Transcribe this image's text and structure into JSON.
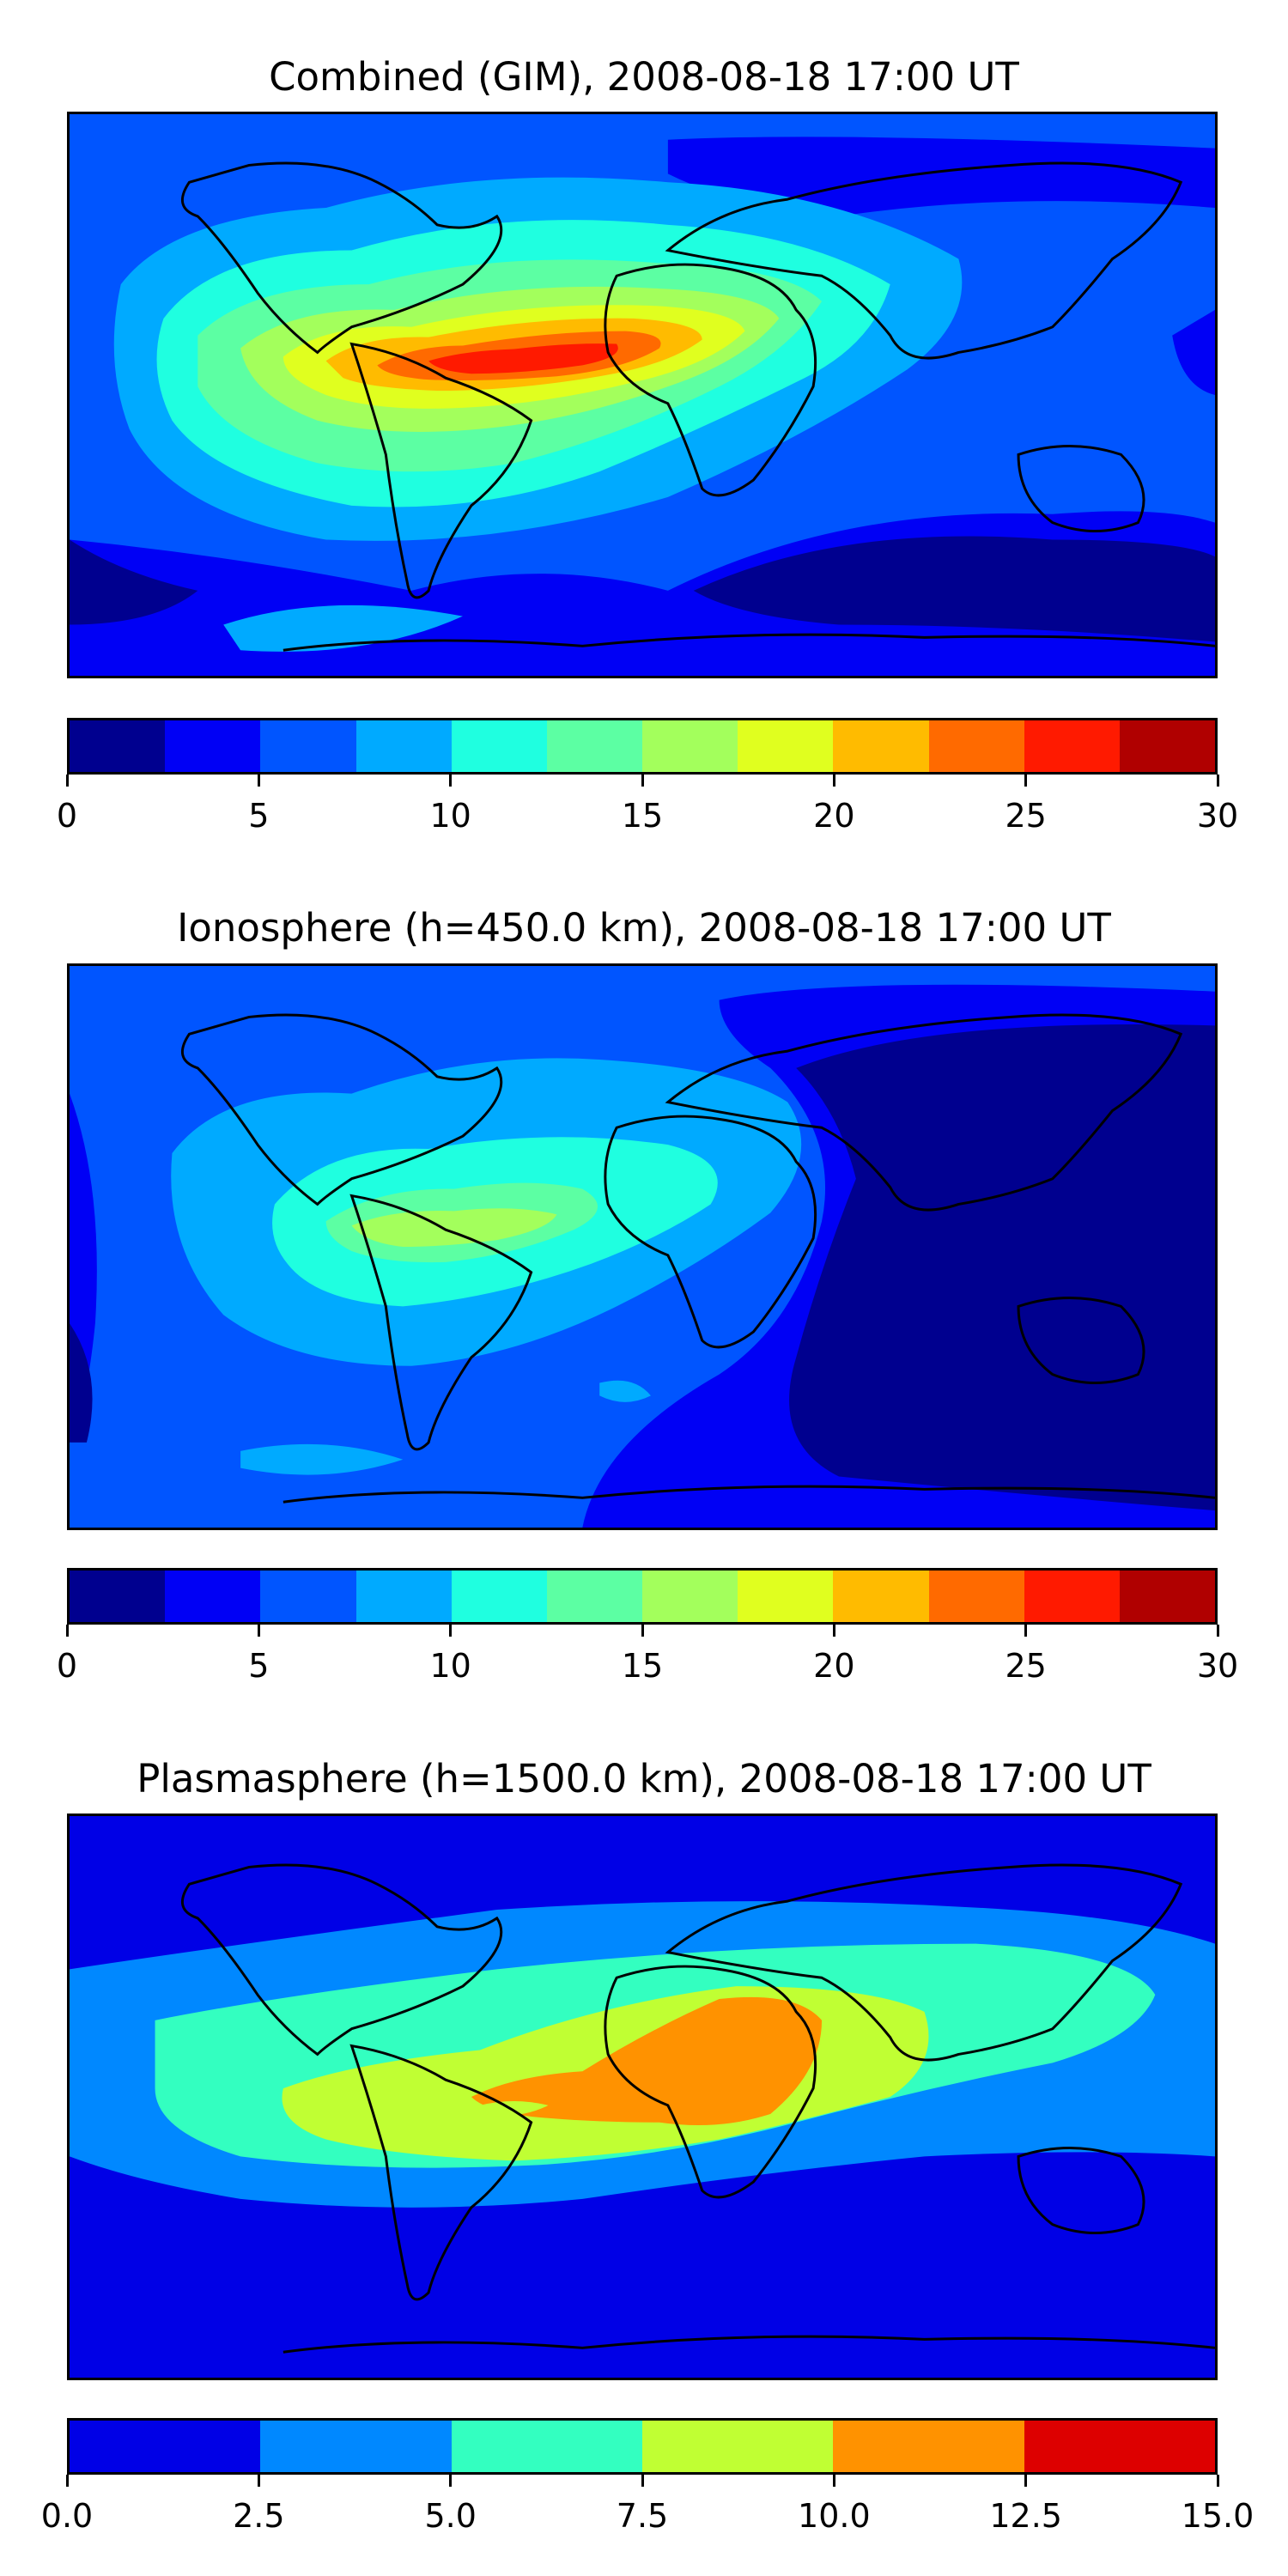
{
  "panels": [
    {
      "title": "Combined (GIM), 2008-08-18 17:00 UT",
      "colorbar": {
        "colors": [
          "#00008f",
          "#0000f5",
          "#0055ff",
          "#00aaff",
          "#1fffe0",
          "#5cffa3",
          "#a3ff5c",
          "#e0ff1f",
          "#ffbb00",
          "#ff6a00",
          "#ff1a00",
          "#b00000"
        ],
        "ticks": [
          "0",
          "5",
          "10",
          "15",
          "20",
          "25",
          "30"
        ],
        "range": [
          0,
          30
        ]
      }
    },
    {
      "title": "Ionosphere  (h=450.0 km), 2008-08-18 17:00 UT",
      "colorbar": {
        "colors": [
          "#00008f",
          "#0000f5",
          "#0055ff",
          "#00aaff",
          "#1fffe0",
          "#5cffa3",
          "#a3ff5c",
          "#e0ff1f",
          "#ffbb00",
          "#ff6a00",
          "#ff1a00",
          "#b00000"
        ],
        "ticks": [
          "0",
          "5",
          "10",
          "15",
          "20",
          "25",
          "30"
        ],
        "range": [
          0,
          30
        ]
      }
    },
    {
      "title": "Plasmasphere (h=1500.0 km), 2008-08-18 17:00 UT",
      "colorbar": {
        "colors": [
          "#0000e6",
          "#0088ff",
          "#33ffc0",
          "#c0ff33",
          "#ff9200",
          "#dd0000"
        ],
        "ticks": [
          "0.0",
          "2.5",
          "5.0",
          "7.5",
          "10.0",
          "12.5",
          "15.0"
        ],
        "range": [
          0,
          15
        ]
      }
    }
  ]
}
